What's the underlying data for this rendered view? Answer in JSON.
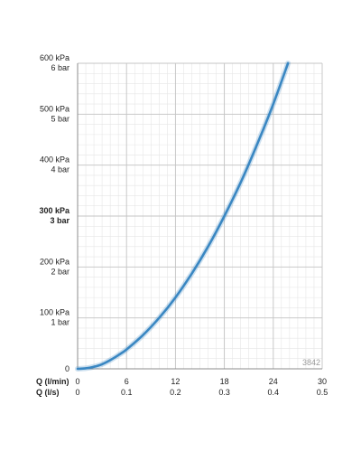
{
  "chart_data": {
    "type": "line",
    "title": "",
    "x_axes": [
      {
        "name": "Q (l/min)",
        "ticks": [
          "0",
          "6",
          "12",
          "18",
          "24",
          "30"
        ],
        "range": [
          0,
          30
        ]
      },
      {
        "name": "Q (l/s)",
        "ticks": [
          "0",
          "0.1",
          "0.2",
          "0.3",
          "0.4",
          "0.5"
        ],
        "range": [
          0,
          0.5
        ]
      }
    ],
    "y_ticks": [
      {
        "value": 0,
        "kpa": "0",
        "bar": "",
        "bold": false
      },
      {
        "value": 100,
        "kpa": "100 kPa",
        "bar": "1 bar",
        "bold": false
      },
      {
        "value": 200,
        "kpa": "200 kPa",
        "bar": "2 bar",
        "bold": false
      },
      {
        "value": 300,
        "kpa": "300 kPa",
        "bar": "3 bar",
        "bold": true
      },
      {
        "value": 400,
        "kpa": "400 kPa",
        "bar": "4 bar",
        "bold": false
      },
      {
        "value": 500,
        "kpa": "500 kPa",
        "bar": "5 bar",
        "bold": false
      },
      {
        "value": 600,
        "kpa": "600 kPa",
        "bar": "6 bar",
        "bold": false
      }
    ],
    "ylim": [
      0,
      600
    ],
    "xlim": [
      0,
      30
    ],
    "grid": true,
    "series": [
      {
        "color": "#3a87c2",
        "points": [
          [
            0,
            0
          ],
          [
            1,
            1
          ],
          [
            2,
            4
          ],
          [
            3,
            9
          ],
          [
            4,
            17
          ],
          [
            5,
            27
          ],
          [
            6,
            38
          ],
          [
            8,
            66
          ],
          [
            10,
            100
          ],
          [
            12,
            140
          ],
          [
            14,
            187
          ],
          [
            16,
            240
          ],
          [
            18,
            300
          ],
          [
            20,
            366
          ],
          [
            22,
            440
          ],
          [
            24,
            520
          ],
          [
            25.8,
            600
          ]
        ]
      }
    ],
    "annotation": "3842"
  }
}
